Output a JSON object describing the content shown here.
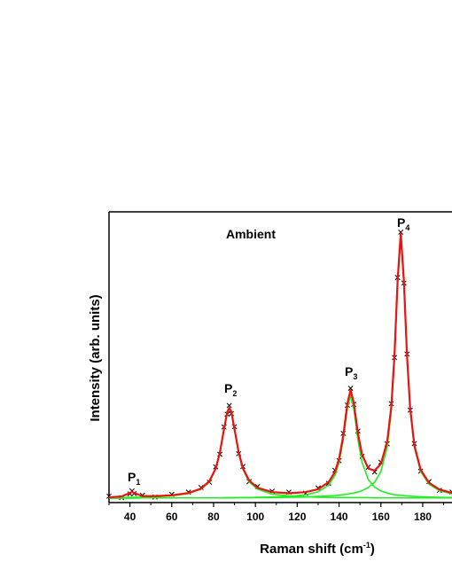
{
  "chart_data": {
    "type": "line",
    "x_label": [
      "Raman shift (cm",
      "-1",
      ")"
    ],
    "y_label": "Intensity (arb. units)",
    "annotations": [
      "Ambient",
      "P",
      "1",
      "P",
      "2",
      "P",
      "3",
      "P",
      "4"
    ],
    "x": [
      30,
      36,
      40,
      41,
      42,
      46,
      52,
      60,
      68,
      74,
      78,
      81,
      83,
      85,
      86.5,
      87.5,
      88.5,
      90,
      92,
      94,
      97,
      101,
      108,
      116,
      124,
      130,
      135,
      138,
      140,
      142,
      144,
      145.5,
      147,
      149,
      151,
      154,
      157,
      160,
      163,
      165,
      166.5,
      168,
      169.5,
      171,
      172.5,
      174,
      176,
      179,
      183,
      188,
      194
    ],
    "series": [
      {
        "mark": "x",
        "color": "#000000",
        "values": [
          2.2,
          1.7,
          3.0,
          4.0,
          3.1,
          2.5,
          1.9,
          2.8,
          3.6,
          5.2,
          7.0,
          12.3,
          16.6,
          26.0,
          30.4,
          33.4,
          30.6,
          26.1,
          16.8,
          12.4,
          7.2,
          5.5,
          3.9,
          3.6,
          3.2,
          5.0,
          6.6,
          11.1,
          14.4,
          23.8,
          33.5,
          39.3,
          33.8,
          24.6,
          15.9,
          12.2,
          10.5,
          13.9,
          20.2,
          34.0,
          49.9,
          77.4,
          93.0,
          75.5,
          51.1,
          31.8,
          20.3,
          10.8,
          7.2,
          4.2,
          3.6
        ]
      },
      {
        "mark": "line",
        "color": "#22ee22",
        "values": [
          1.7,
          1.7,
          1.8,
          1.8,
          1.8,
          1.9,
          2.0,
          2.3,
          3.1,
          4.6,
          7.1,
          11.5,
          16.9,
          25.0,
          30.9,
          32.3,
          30.9,
          25.0,
          16.9,
          11.5,
          7.1,
          4.6,
          2.9,
          2.3,
          2.0,
          1.8,
          1.8,
          1.7,
          1.7,
          1.7,
          1.7,
          1.7,
          1.7,
          1.7,
          1.7,
          1.7,
          1.6,
          1.6,
          1.6,
          1.6,
          1.6,
          1.6,
          1.6,
          1.6,
          1.6,
          1.6,
          1.6,
          1.6,
          1.6,
          1.6,
          1.6
        ]
      },
      {
        "mark": "line",
        "color": "#22ee22",
        "values": [
          1.5,
          1.5,
          1.5,
          1.5,
          1.5,
          1.6,
          1.6,
          1.6,
          1.6,
          1.6,
          1.6,
          1.6,
          1.6,
          1.7,
          1.7,
          1.7,
          1.7,
          1.7,
          1.7,
          1.7,
          1.7,
          1.8,
          1.9,
          2.1,
          2.7,
          3.7,
          6.0,
          9.3,
          13.8,
          21.6,
          32.5,
          36.9,
          32.5,
          21.6,
          13.8,
          7.9,
          5.3,
          4.0,
          3.3,
          2.9,
          2.7,
          2.6,
          2.5,
          2.4,
          2.3,
          2.2,
          2.1,
          2.0,
          1.9,
          1.8,
          1.7
        ]
      },
      {
        "mark": "line",
        "color": "#22ee22",
        "values": [
          1.5,
          1.6,
          1.6,
          1.6,
          1.6,
          1.6,
          1.6,
          1.6,
          1.6,
          1.6,
          1.6,
          1.6,
          1.6,
          1.6,
          1.6,
          1.6,
          1.6,
          1.6,
          1.7,
          1.7,
          1.7,
          1.7,
          1.7,
          1.8,
          1.9,
          2.1,
          2.3,
          2.4,
          2.6,
          2.7,
          2.9,
          3.1,
          3.3,
          3.6,
          4.1,
          5.2,
          7.0,
          10.7,
          19.0,
          31.7,
          49.4,
          75.3,
          91.5,
          75.3,
          49.4,
          31.7,
          19.0,
          10.7,
          6.3,
          4.1,
          3.0
        ]
      },
      {
        "mark": "line",
        "color": "#ee1111",
        "values": [
          1.8,
          2.1,
          3.3,
          3.7,
          3.3,
          2.2,
          2.2,
          2.5,
          3.3,
          4.8,
          7.4,
          11.7,
          17.2,
          25.3,
          31.1,
          32.6,
          31.2,
          25.3,
          17.3,
          11.8,
          7.6,
          5.1,
          3.6,
          3.2,
          3.6,
          4.6,
          7.0,
          10.5,
          15.0,
          23.0,
          34.1,
          38.7,
          34.5,
          23.9,
          16.5,
          11.7,
          11.0,
          13.3,
          20.9,
          33.2,
          50.8,
          76.5,
          92.6,
          76.3,
          50.3,
          32.5,
          19.7,
          11.3,
          6.8,
          4.5,
          3.3
        ]
      }
    ],
    "xlim": [
      30,
      194
    ],
    "ylim": [
      0,
      100
    ],
    "xticks": [
      40,
      60,
      80,
      100,
      120,
      140,
      160,
      180
    ],
    "xminorticks": [
      30,
      50,
      70,
      90,
      110,
      130,
      150,
      170,
      190
    ]
  }
}
